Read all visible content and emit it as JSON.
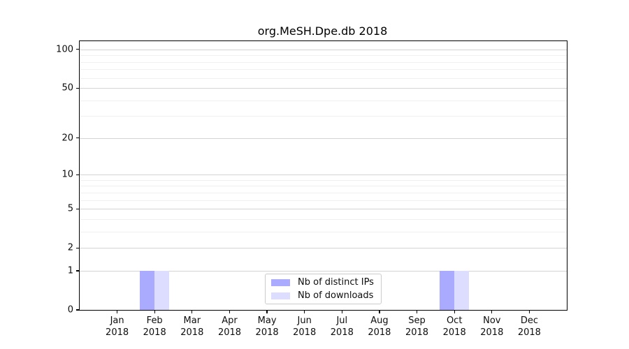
{
  "chart_data": {
    "type": "bar",
    "title": "org.MeSH.Dpe.db 2018",
    "categories": [
      "Jan",
      "Feb",
      "Mar",
      "Apr",
      "May",
      "Jun",
      "Jul",
      "Aug",
      "Sep",
      "Oct",
      "Nov",
      "Dec"
    ],
    "x_sublabel": "2018",
    "series": [
      {
        "name": "Nb of distinct IPs",
        "color": "#aaaaff",
        "values": [
          0,
          1,
          0,
          0,
          0,
          0,
          0,
          0,
          0,
          1,
          0,
          0
        ]
      },
      {
        "name": "Nb of downloads",
        "color": "#ddddff",
        "values": [
          0,
          1,
          0,
          0,
          0,
          0,
          0,
          0,
          0,
          1,
          0,
          0
        ]
      }
    ],
    "y_ticks": [
      0,
      1,
      2,
      5,
      10,
      20,
      50,
      100
    ],
    "y_scale": "log1p",
    "ylim": [
      0,
      116
    ],
    "xlabel": "",
    "ylabel": "",
    "grid": "horizontal-log-minor",
    "legend_position": "lower-center-inside",
    "colors": {
      "major_gridline": "#d4d4d4",
      "minor_gridline": "#f0f0f0",
      "axis": "#000000"
    }
  }
}
